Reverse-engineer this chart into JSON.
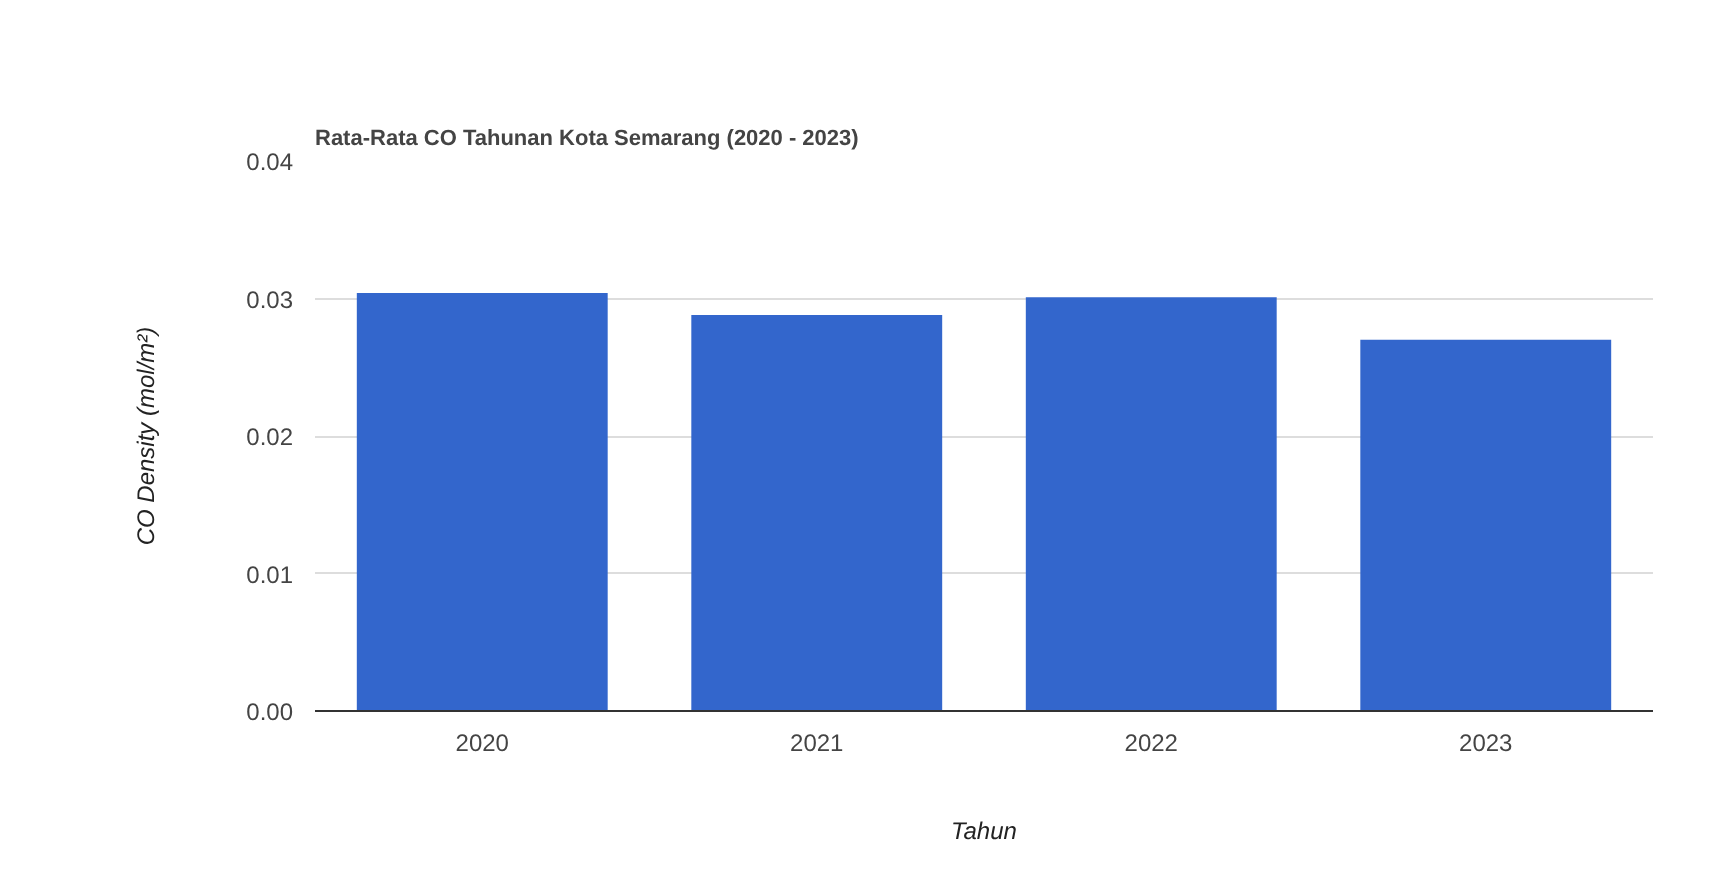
{
  "chart_data": {
    "type": "bar",
    "title": "Rata-Rata CO Tahunan Kota Semarang (2020 - 2023)",
    "xlabel": "Tahun",
    "ylabel": "CO Density (mol/m²)",
    "categories": [
      "2020",
      "2021",
      "2022",
      "2023"
    ],
    "values": [
      0.0304,
      0.0288,
      0.0301,
      0.027
    ],
    "color": "#3366cc",
    "ylim": [
      0,
      0.04
    ],
    "yticks": [
      {
        "value": 0,
        "label": "0.00"
      },
      {
        "value": 0.01,
        "label": "0.01"
      },
      {
        "value": 0.02,
        "label": "0.02"
      },
      {
        "value": 0.03,
        "label": "0.03"
      },
      {
        "value": 0.04,
        "label": "0.04"
      }
    ],
    "grid": "y"
  }
}
